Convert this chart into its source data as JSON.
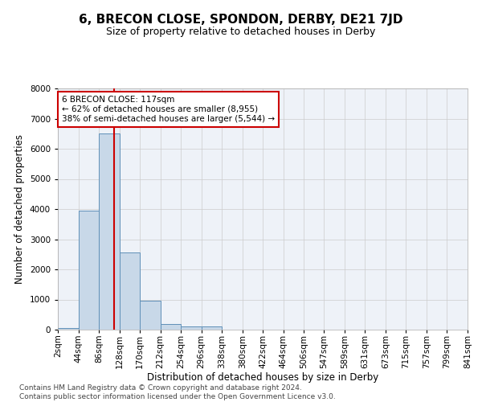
{
  "title": "6, BRECON CLOSE, SPONDON, DERBY, DE21 7JD",
  "subtitle": "Size of property relative to detached houses in Derby",
  "xlabel": "Distribution of detached houses by size in Derby",
  "ylabel": "Number of detached properties",
  "footer_line1": "Contains HM Land Registry data © Crown copyright and database right 2024.",
  "footer_line2": "Contains public sector information licensed under the Open Government Licence v3.0.",
  "annotation_line1": "6 BRECON CLOSE: 117sqm",
  "annotation_line2": "← 62% of detached houses are smaller (8,955)",
  "annotation_line3": "38% of semi-detached houses are larger (5,544) →",
  "bin_edges": [
    2,
    44,
    86,
    128,
    170,
    212,
    254,
    296,
    338,
    380,
    422,
    464,
    506,
    547,
    589,
    631,
    673,
    715,
    757,
    799,
    841
  ],
  "bin_labels": [
    "2sqm",
    "44sqm",
    "86sqm",
    "128sqm",
    "170sqm",
    "212sqm",
    "254sqm",
    "296sqm",
    "338sqm",
    "380sqm",
    "422sqm",
    "464sqm",
    "506sqm",
    "547sqm",
    "589sqm",
    "631sqm",
    "673sqm",
    "715sqm",
    "757sqm",
    "799sqm",
    "841sqm"
  ],
  "bar_heights": [
    50,
    3950,
    6500,
    2550,
    950,
    200,
    100,
    100,
    0,
    0,
    0,
    0,
    0,
    0,
    0,
    0,
    0,
    0,
    0,
    0
  ],
  "bar_color": "#c8d8e8",
  "bar_edge_color": "#6090b8",
  "vline_x": 117,
  "vline_color": "#cc0000",
  "ylim": [
    0,
    8000
  ],
  "yticks": [
    0,
    1000,
    2000,
    3000,
    4000,
    5000,
    6000,
    7000,
    8000
  ],
  "grid_color": "#cccccc",
  "background_color": "#ffffff",
  "plot_bg_color": "#eef2f8",
  "annotation_box_facecolor": "#ffffff",
  "annotation_box_edgecolor": "#cc0000",
  "title_fontsize": 11,
  "subtitle_fontsize": 9,
  "axis_label_fontsize": 8.5,
  "tick_fontsize": 7.5,
  "annotation_fontsize": 7.5,
  "footer_fontsize": 6.5
}
